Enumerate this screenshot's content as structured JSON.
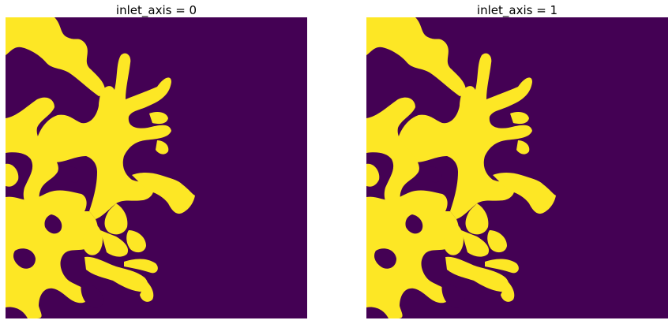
{
  "colors": {
    "background": "#440154",
    "foreground": "#fde725"
  },
  "panels": [
    {
      "title": "inlet_axis = 0"
    },
    {
      "title": "inlet_axis = 1"
    }
  ]
}
